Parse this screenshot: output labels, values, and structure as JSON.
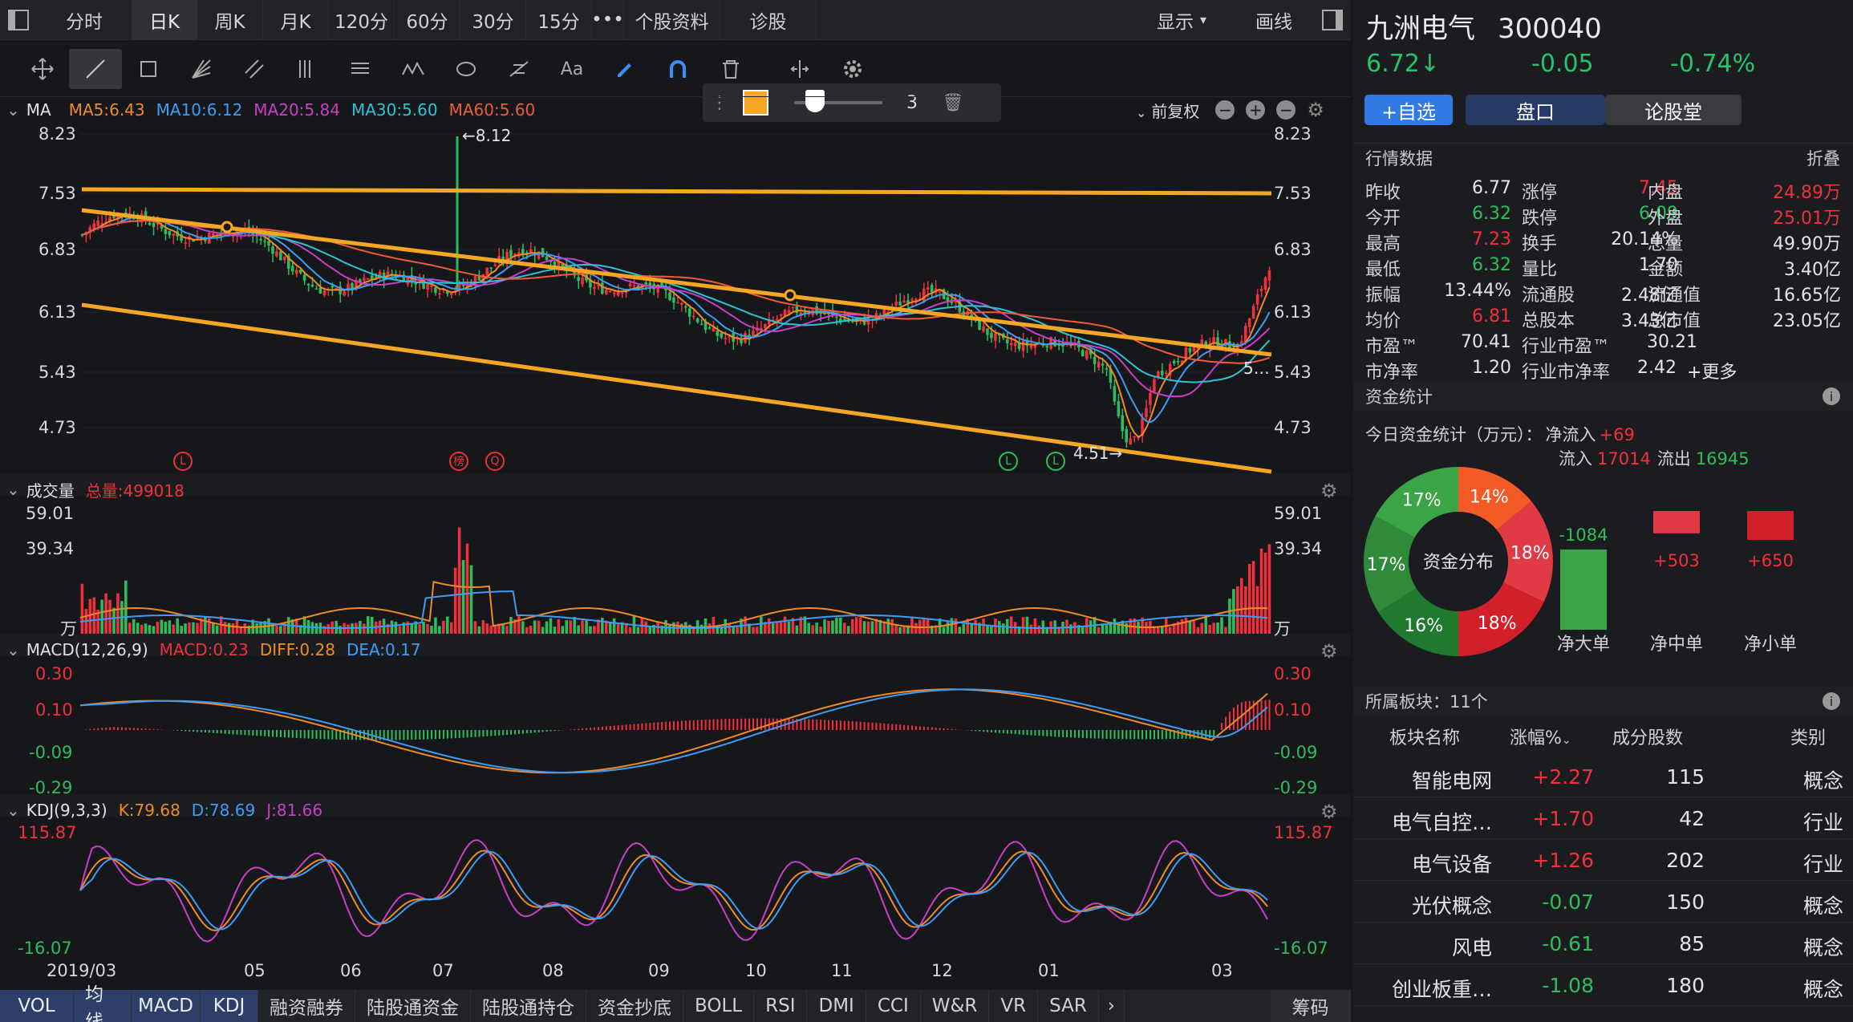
{
  "tabs": {
    "items": [
      "分时",
      "日K",
      "周K",
      "月K",
      "120分",
      "60分",
      "30分",
      "15分"
    ],
    "more": "•••",
    "stock_info": "个股资料",
    "diagnose": "诊股",
    "display": "显示",
    "draw": "画线"
  },
  "toolbar": {
    "text_tool": "Aa",
    "line_width": "3"
  },
  "main_panel": {
    "title": "MA",
    "ma5": "MA5:6.43",
    "ma10": "MA10:6.12",
    "ma20": "MA20:5.84",
    "ma30": "MA30:5.60",
    "ma60": "MA60:5.60",
    "adjust": "前复权",
    "y_ticks": [
      "8.23",
      "7.53",
      "6.83",
      "6.13",
      "5.43",
      "4.73"
    ],
    "high_label": "←8.12",
    "low_label": "4.51→",
    "tail_label": "5…",
    "markers": [
      "L",
      "榜",
      "Q",
      "L",
      "L"
    ],
    "colors": {
      "ma5": "#f08a24",
      "ma10": "#3d9cf5",
      "ma20": "#c83ec6",
      "ma30": "#2bc4d4",
      "ma60": "#f05a3a",
      "trend": "#f5a623"
    }
  },
  "vol_panel": {
    "title": "成交量",
    "total": "总量:499018",
    "y_ticks": [
      "59.01",
      "39.34",
      "万"
    ]
  },
  "macd_panel": {
    "title": "MACD(12,26,9)",
    "macd": "MACD:0.23",
    "diff": "DIFF:0.28",
    "dea": "DEA:0.17",
    "y_ticks": [
      "0.30",
      "0.10",
      "-0.09",
      "-0.29"
    ]
  },
  "kdj_panel": {
    "title": "KDJ(9,3,3)",
    "k": "K:79.68",
    "d": "D:78.69",
    "j": "J:81.66",
    "y_ticks": [
      "115.87",
      "-16.07"
    ]
  },
  "x_axis": [
    "2019/03",
    "05",
    "06",
    "07",
    "08",
    "09",
    "10",
    "11",
    "12",
    "01",
    "03"
  ],
  "bottom_tabs": [
    "VOL",
    "均线",
    "MACD",
    "KDJ",
    "融资融券",
    "陆股通资金",
    "陆股通持仓",
    "资金抄底",
    "BOLL",
    "RSI",
    "DMI",
    "CCI",
    "W&R",
    "VR",
    "SAR"
  ],
  "chip_button": "筹码",
  "stock": {
    "name": "九洲电气",
    "code": "300040",
    "price": "6.72",
    "change": "-0.05",
    "change_pct": "-0.74%"
  },
  "right_buttons": {
    "add": "+自选",
    "panel": "盘口",
    "forum": "论股堂"
  },
  "quotes": {
    "section": "行情数据",
    "fold": "折叠",
    "rows": [
      [
        [
          "昨收",
          "6.77",
          "white"
        ],
        [
          "涨停",
          "7.45",
          "red"
        ],
        [
          "内盘",
          "24.89万",
          "red"
        ]
      ],
      [
        [
          "今开",
          "6.32",
          "green"
        ],
        [
          "跌停",
          "6.09",
          "green"
        ],
        [
          "外盘",
          "25.01万",
          "red"
        ]
      ],
      [
        [
          "最高",
          "7.23",
          "red"
        ],
        [
          "换手",
          "20.14%",
          "white"
        ],
        [
          "总量",
          "49.90万",
          "white"
        ]
      ],
      [
        [
          "最低",
          "6.32",
          "green"
        ],
        [
          "量比",
          "1.70",
          "white"
        ],
        [
          "金额",
          "3.40亿",
          "white"
        ]
      ],
      [
        [
          "振幅",
          "13.44%",
          "white"
        ],
        [
          "流通股",
          "2.48亿",
          "white"
        ],
        [
          "流通值",
          "16.65亿",
          "white"
        ]
      ],
      [
        [
          "均价",
          "6.81",
          "red"
        ],
        [
          "总股本",
          "3.43亿",
          "white"
        ],
        [
          "总市值",
          "23.05亿",
          "white"
        ]
      ]
    ],
    "pe_label": "市盈™",
    "pe": "70.41",
    "ind_pe_label": "行业市盈™",
    "ind_pe": "30.21",
    "pb_label": "市净率",
    "pb": "1.20",
    "ind_pb_label": "行业市净率",
    "ind_pb": "2.42",
    "more": "+更多"
  },
  "funds": {
    "section": "资金统计",
    "today": "今日资金统计（万元）：",
    "net_in_label": "净流入",
    "net_in": "+69",
    "in_label": "流入",
    "in": "17014",
    "out_label": "流出",
    "out": "16945",
    "center": "资金分布",
    "slices": [
      {
        "label": "14%",
        "value": 14,
        "color": "#f35a26"
      },
      {
        "label": "18%",
        "value": 18,
        "color": "#e23a45"
      },
      {
        "label": "18%",
        "value": 18,
        "color": "#d2202b"
      },
      {
        "label": "16%",
        "value": 16,
        "color": "#1f7a2d"
      },
      {
        "label": "17%",
        "value": 17,
        "color": "#2f8a3a"
      },
      {
        "label": "17%",
        "value": 17,
        "color": "#3aa547"
      }
    ],
    "bars": [
      {
        "label": "净大单",
        "value": "-1084",
        "color": "#3aa547"
      },
      {
        "label": "净中单",
        "value": "+503",
        "color": "#e23a45"
      },
      {
        "label": "净小单",
        "value": "+650",
        "color": "#d2202b"
      }
    ]
  },
  "sectors": {
    "title": "所属板块：11个",
    "headers": [
      "板块名称",
      "涨幅%",
      "成分股数",
      "类别"
    ],
    "rows": [
      [
        "智能电网",
        "+2.27",
        "115",
        "概念"
      ],
      [
        "电气自控…",
        "+1.70",
        "42",
        "行业"
      ],
      [
        "电气设备",
        "+1.26",
        "202",
        "行业"
      ],
      [
        "光伏概念",
        "-0.07",
        "150",
        "概念"
      ],
      [
        "风电",
        "-0.61",
        "85",
        "概念"
      ],
      [
        "创业板重…",
        "-1.08",
        "180",
        "概念"
      ]
    ]
  }
}
